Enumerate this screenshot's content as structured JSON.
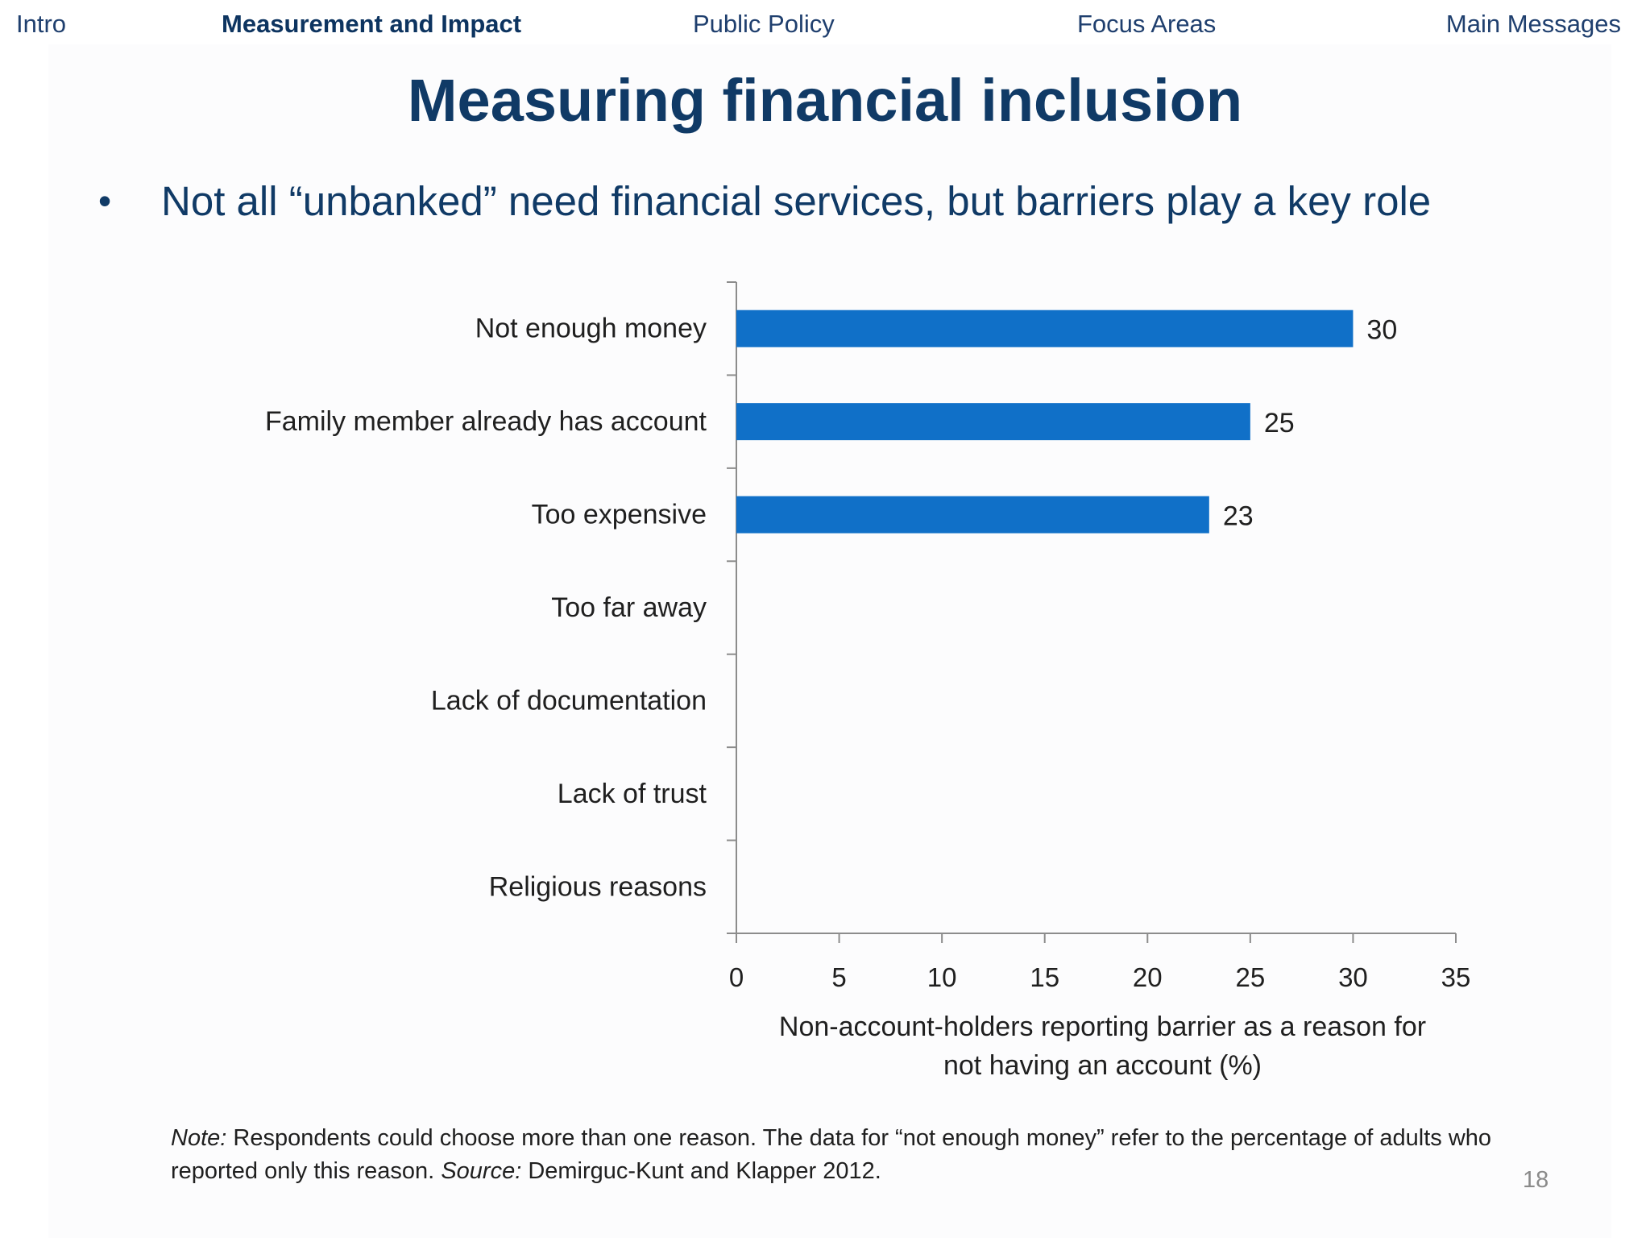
{
  "nav": {
    "items": [
      {
        "label": "Intro"
      },
      {
        "label": "Measurement and Impact"
      },
      {
        "label": "Public Policy"
      },
      {
        "label": "Focus Areas"
      },
      {
        "label": "Main Messages"
      }
    ],
    "active_index": 1
  },
  "slide": {
    "title": "Measuring financial inclusion",
    "bullet": "Not all “unbanked” need financial services, but barriers play a key role",
    "page_number": "18"
  },
  "note": {
    "label": "Note:",
    "text": " Respondents could choose more than one reason. The data for “not enough money” refer to the percentage of adults who reported only this reason. ",
    "source_label": "Source:",
    "source_text": " Demirguc-Kunt and Klapper 2012."
  },
  "colors": {
    "bar": "#1070c8",
    "title": "#103a66",
    "axis": "#8c8c8c"
  },
  "chart_data": {
    "type": "bar",
    "orientation": "horizontal",
    "categories": [
      "Not enough money",
      "Family member already has account",
      "Too expensive",
      "Too far away",
      "Lack of documentation",
      "Lack of trust",
      "Religious reasons"
    ],
    "values": [
      30,
      25,
      23,
      null,
      null,
      null,
      null
    ],
    "value_labels": [
      "30",
      "25",
      "23",
      "",
      "",
      "",
      ""
    ],
    "xlim": [
      0,
      35
    ],
    "xticks": [
      0,
      5,
      10,
      15,
      20,
      25,
      30,
      35
    ],
    "xlabel_line1": "Non-account-holders reporting barrier as a reason for",
    "xlabel_line2": "not having an account (%)",
    "title": "",
    "grid": false,
    "legend": "none"
  }
}
